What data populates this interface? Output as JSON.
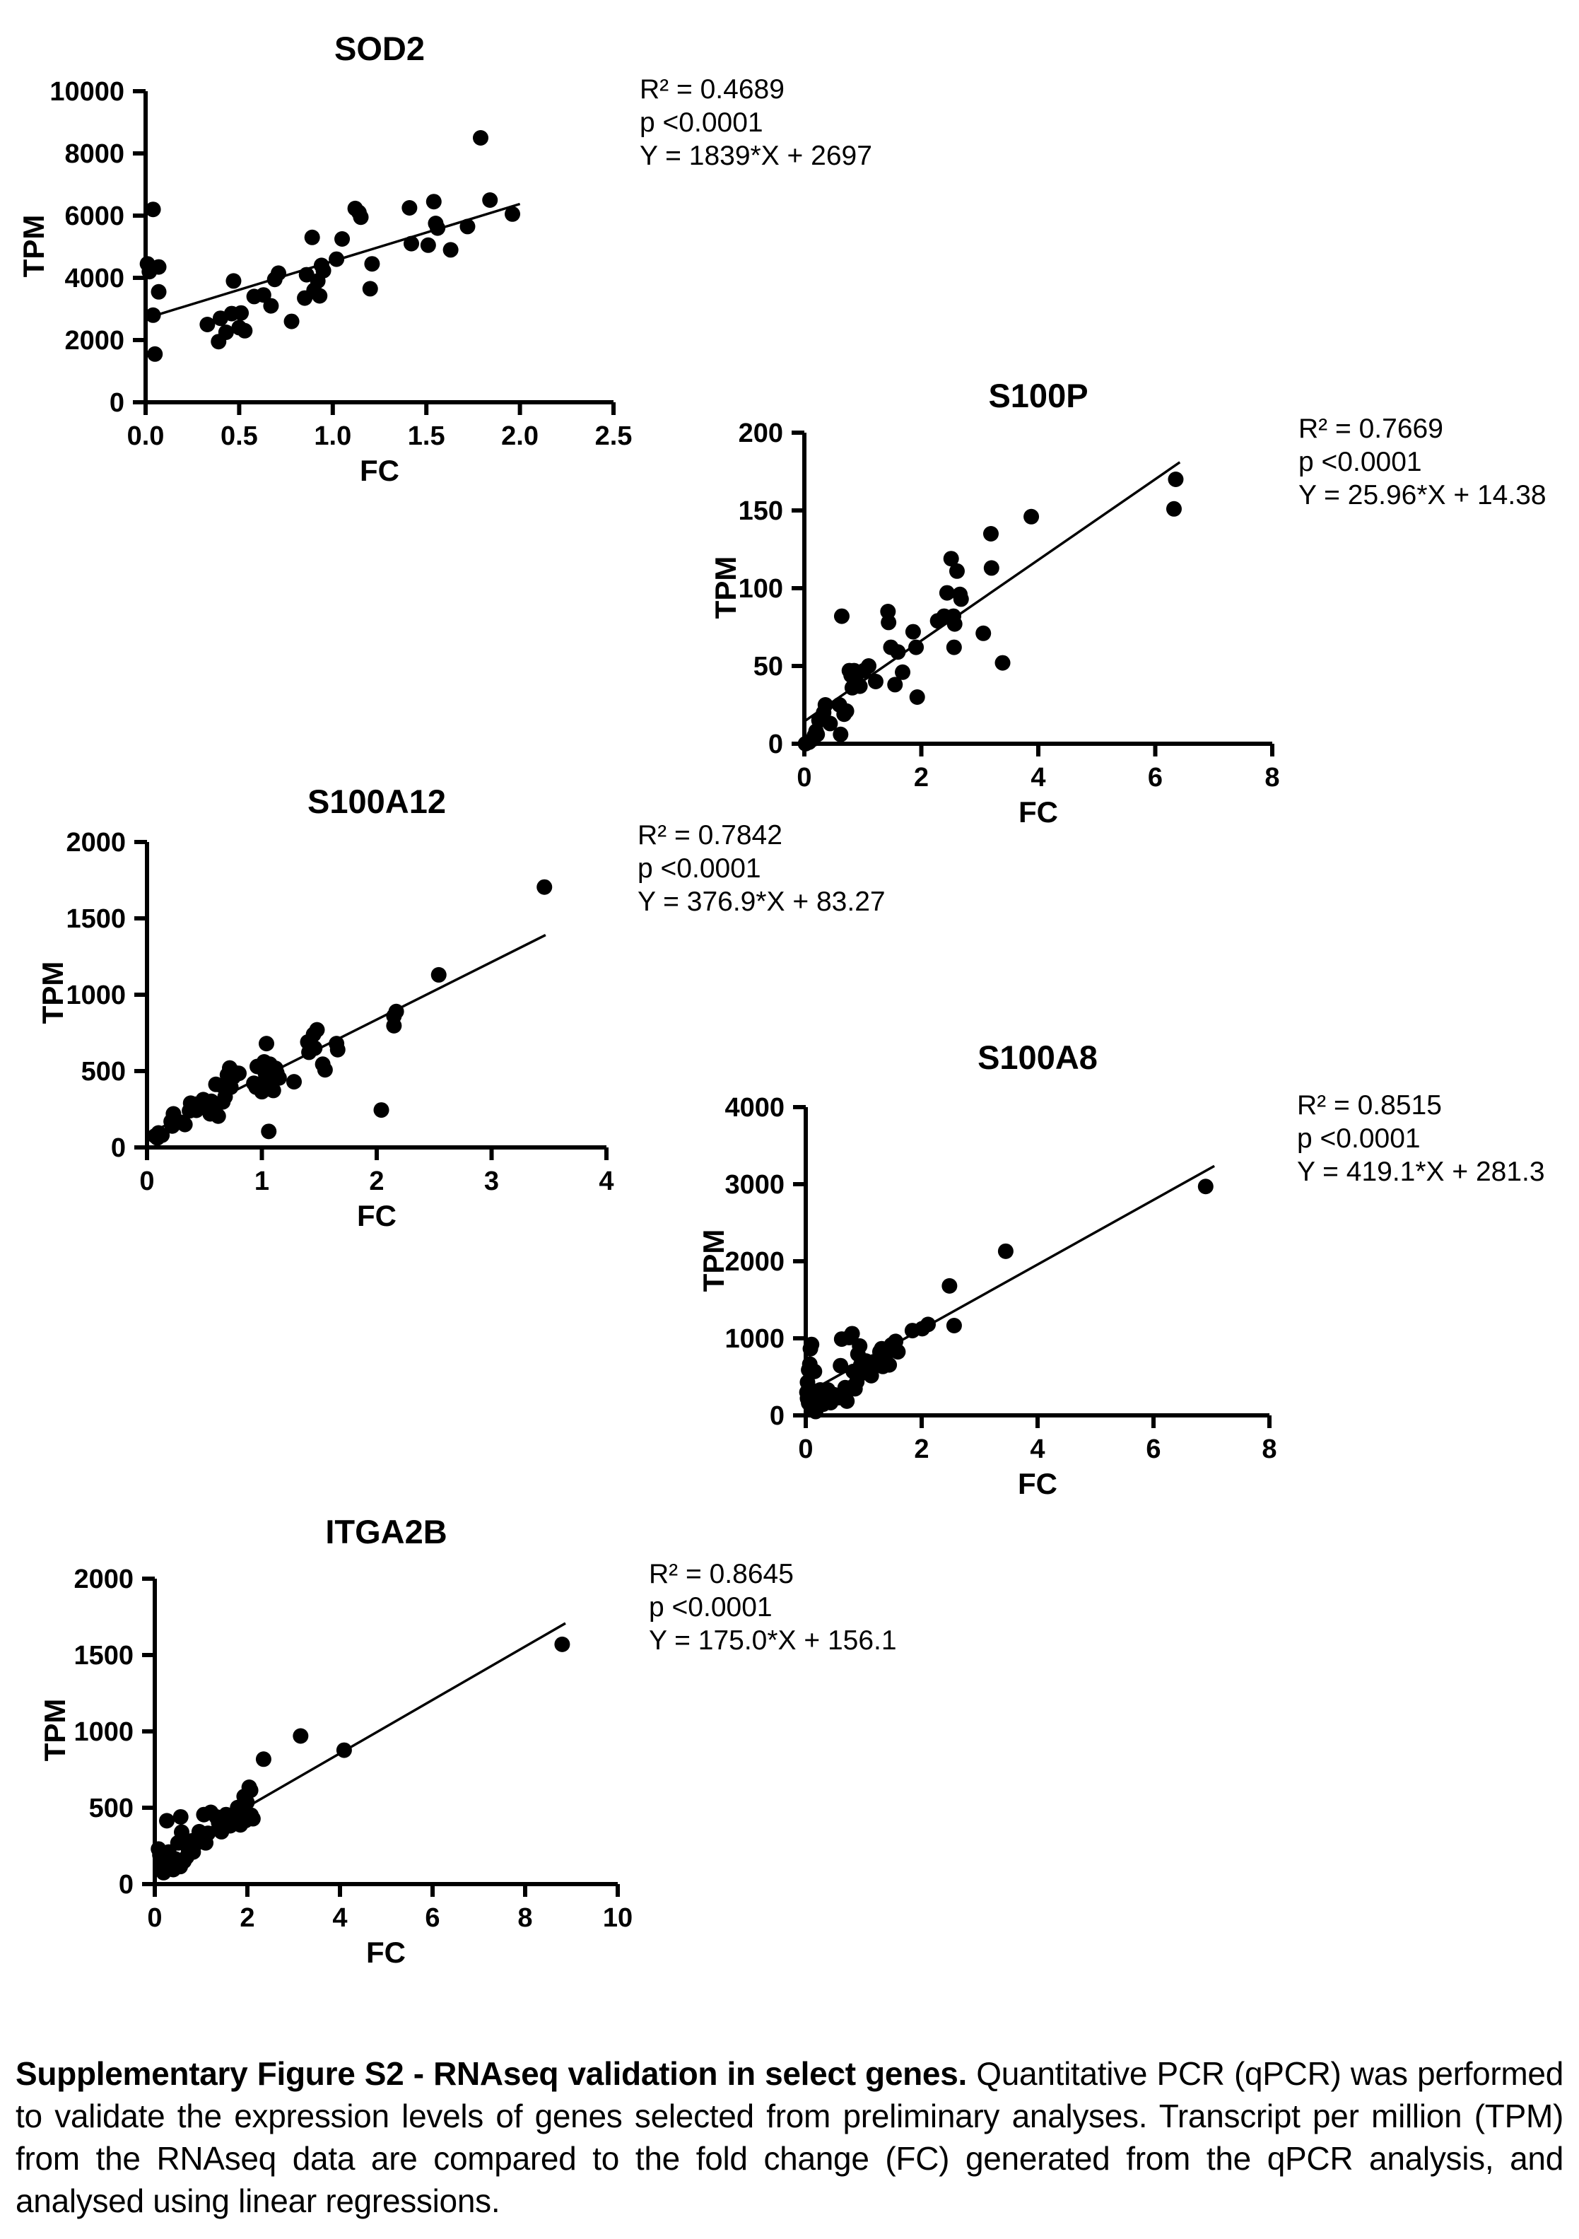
{
  "colors": {
    "foreground": "#000000",
    "background": "#ffffff"
  },
  "figure": {
    "caption_bold": "Supplementary Figure S2 - RNAseq validation in select genes.",
    "caption_rest": " Quantitative PCR (qPCR) was performed to validate the expression levels of genes selected from preliminary analyses. Transcript per million (TPM) from the RNAseq data are compared to the fold change (FC) generated from the qPCR analysis, and analysed using linear regressions."
  },
  "chart_data": [
    {
      "type": "scatter",
      "title": "SOD2",
      "xlabel": "FC",
      "ylabel": "TPM",
      "xlim": [
        0,
        2.5
      ],
      "ylim": [
        0,
        10000
      ],
      "x_ticks": [
        0,
        0.5,
        1.0,
        1.5,
        2.0,
        2.5
      ],
      "x_tick_labels": [
        "0.0",
        "0.5",
        "1.0",
        "1.5",
        "2.0",
        "2.5"
      ],
      "y_ticks": [
        0,
        2000,
        4000,
        6000,
        8000,
        10000
      ],
      "y_tick_labels": [
        "0",
        "2000",
        "4000",
        "6000",
        "8000",
        "10000"
      ],
      "stats": {
        "r2": "R² = 0.4689",
        "p": "p <0.0001",
        "equation": "Y = 1839*X + 2697"
      },
      "regression": {
        "x1": 0.05,
        "y1": 2789,
        "x2": 2.0,
        "y2": 6375
      },
      "points": [
        [
          0.04,
          6200
        ],
        [
          0.01,
          4450
        ],
        [
          0.02,
          4200
        ],
        [
          0.07,
          4350
        ],
        [
          0.07,
          3550
        ],
        [
          0.04,
          2800
        ],
        [
          0.05,
          1550
        ],
        [
          0.33,
          2500
        ],
        [
          0.39,
          1950
        ],
        [
          0.4,
          2700
        ],
        [
          0.43,
          2250
        ],
        [
          0.46,
          2850
        ],
        [
          0.47,
          3900
        ],
        [
          0.5,
          2400
        ],
        [
          0.51,
          2870
        ],
        [
          0.53,
          2300
        ],
        [
          0.58,
          3400
        ],
        [
          0.63,
          3450
        ],
        [
          0.67,
          3100
        ],
        [
          0.69,
          3950
        ],
        [
          0.71,
          4150
        ],
        [
          0.78,
          2600
        ],
        [
          0.85,
          3350
        ],
        [
          0.86,
          4100
        ],
        [
          0.89,
          5300
        ],
        [
          0.9,
          3600
        ],
        [
          0.92,
          3900
        ],
        [
          0.93,
          3420
        ],
        [
          0.94,
          4400
        ],
        [
          0.95,
          4230
        ],
        [
          1.02,
          4600
        ],
        [
          1.05,
          5250
        ],
        [
          1.12,
          6230
        ],
        [
          1.14,
          6100
        ],
        [
          1.15,
          5950
        ],
        [
          1.2,
          3650
        ],
        [
          1.21,
          4450
        ],
        [
          1.41,
          6250
        ],
        [
          1.42,
          5100
        ],
        [
          1.51,
          5050
        ],
        [
          1.54,
          6450
        ],
        [
          1.55,
          5750
        ],
        [
          1.56,
          5600
        ],
        [
          1.63,
          4900
        ],
        [
          1.72,
          5650
        ],
        [
          1.79,
          8500
        ],
        [
          1.84,
          6500
        ],
        [
          1.96,
          6050
        ]
      ]
    },
    {
      "type": "scatter",
      "title": "S100P",
      "xlabel": "FC",
      "ylabel": "TPM",
      "xlim": [
        0,
        8
      ],
      "ylim": [
        0,
        200
      ],
      "x_ticks": [
        0,
        2,
        4,
        6,
        8
      ],
      "x_tick_labels": [
        "0",
        "2",
        "4",
        "6",
        "8"
      ],
      "y_ticks": [
        0,
        50,
        100,
        150,
        200
      ],
      "y_tick_labels": [
        "0",
        "50",
        "100",
        "150",
        "200"
      ],
      "stats": {
        "r2": "R² = 0.7669",
        "p": "p <0.0001",
        "equation": "Y = 25.96*X + 14.38"
      },
      "regression": {
        "x1": 0.02,
        "y1": 14.9,
        "x2": 6.42,
        "y2": 181
      },
      "points": [
        [
          0.02,
          0
        ],
        [
          0.08,
          1
        ],
        [
          0.15,
          3
        ],
        [
          0.17,
          5
        ],
        [
          0.2,
          8
        ],
        [
          0.22,
          6
        ],
        [
          0.25,
          15
        ],
        [
          0.33,
          20
        ],
        [
          0.36,
          25
        ],
        [
          0.44,
          13
        ],
        [
          0.6,
          25
        ],
        [
          0.62,
          6
        ],
        [
          0.64,
          82
        ],
        [
          0.68,
          19
        ],
        [
          0.72,
          21
        ],
        [
          0.77,
          47
        ],
        [
          0.8,
          44
        ],
        [
          0.82,
          36
        ],
        [
          0.85,
          47
        ],
        [
          0.9,
          39
        ],
        [
          0.95,
          37
        ],
        [
          1.02,
          47
        ],
        [
          1.1,
          50
        ],
        [
          1.22,
          40
        ],
        [
          1.43,
          85
        ],
        [
          1.44,
          78
        ],
        [
          1.48,
          62
        ],
        [
          1.55,
          38
        ],
        [
          1.6,
          59
        ],
        [
          1.68,
          46
        ],
        [
          1.86,
          72
        ],
        [
          1.91,
          62
        ],
        [
          1.93,
          30
        ],
        [
          2.28,
          79
        ],
        [
          2.39,
          82
        ],
        [
          2.44,
          97
        ],
        [
          2.51,
          119
        ],
        [
          2.55,
          82
        ],
        [
          2.56,
          62
        ],
        [
          2.57,
          77
        ],
        [
          2.61,
          111
        ],
        [
          2.66,
          96
        ],
        [
          2.68,
          93
        ],
        [
          3.06,
          71
        ],
        [
          3.19,
          135
        ],
        [
          3.2,
          113
        ],
        [
          3.39,
          52
        ],
        [
          3.88,
          146
        ],
        [
          6.32,
          151
        ],
        [
          6.35,
          170
        ]
      ]
    },
    {
      "type": "scatter",
      "title": "S100A12",
      "xlabel": "FC",
      "ylabel": "TPM",
      "xlim": [
        0,
        4
      ],
      "ylim": [
        0,
        2000
      ],
      "x_ticks": [
        0,
        1,
        2,
        3,
        4
      ],
      "x_tick_labels": [
        "0",
        "1",
        "2",
        "3",
        "4"
      ],
      "y_ticks": [
        0,
        500,
        1000,
        1500,
        2000
      ],
      "y_tick_labels": [
        "0",
        "500",
        "1000",
        "1500",
        "2000"
      ],
      "stats": {
        "r2": "R² = 0.7842",
        "p": "p <0.0001",
        "equation": "Y = 376.9*X + 83.27"
      },
      "regression": {
        "x1": 0.07,
        "y1": 110,
        "x2": 3.47,
        "y2": 1391
      },
      "points": [
        [
          0.07,
          75
        ],
        [
          0.09,
          62
        ],
        [
          0.1,
          95
        ],
        [
          0.13,
          80
        ],
        [
          0.21,
          170
        ],
        [
          0.22,
          140
        ],
        [
          0.23,
          220
        ],
        [
          0.29,
          165
        ],
        [
          0.33,
          150
        ],
        [
          0.37,
          240
        ],
        [
          0.38,
          290
        ],
        [
          0.4,
          265
        ],
        [
          0.42,
          283
        ],
        [
          0.43,
          243
        ],
        [
          0.47,
          265
        ],
        [
          0.49,
          313
        ],
        [
          0.51,
          265
        ],
        [
          0.53,
          283
        ],
        [
          0.55,
          220
        ],
        [
          0.56,
          302
        ],
        [
          0.58,
          265
        ],
        [
          0.6,
          413
        ],
        [
          0.62,
          205
        ],
        [
          0.65,
          405
        ],
        [
          0.66,
          298
        ],
        [
          0.68,
          332
        ],
        [
          0.7,
          475
        ],
        [
          0.72,
          520
        ],
        [
          0.73,
          395
        ],
        [
          0.75,
          460
        ],
        [
          0.77,
          488
        ],
        [
          0.8,
          485
        ],
        [
          0.93,
          420
        ],
        [
          0.95,
          395
        ],
        [
          0.96,
          530
        ],
        [
          0.98,
          415
        ],
        [
          1.0,
          365
        ],
        [
          1.02,
          560
        ],
        [
          1.03,
          488
        ],
        [
          1.04,
          680
        ],
        [
          1.05,
          383
        ],
        [
          1.06,
          105
        ],
        [
          1.07,
          545
        ],
        [
          1.08,
          410
        ],
        [
          1.1,
          373
        ],
        [
          1.12,
          518
        ],
        [
          1.13,
          488
        ],
        [
          1.15,
          455
        ],
        [
          1.28,
          430
        ],
        [
          1.4,
          690
        ],
        [
          1.41,
          623
        ],
        [
          1.45,
          740
        ],
        [
          1.46,
          650
        ],
        [
          1.48,
          770
        ],
        [
          1.53,
          545
        ],
        [
          1.55,
          508
        ],
        [
          1.65,
          680
        ],
        [
          1.66,
          640
        ],
        [
          2.04,
          245
        ],
        [
          2.15,
          860
        ],
        [
          2.15,
          797
        ],
        [
          2.17,
          890
        ],
        [
          2.54,
          1130
        ],
        [
          3.46,
          1705
        ]
      ]
    },
    {
      "type": "scatter",
      "title": "S100A8",
      "xlabel": "FC",
      "ylabel": "TPM",
      "xlim": [
        0,
        8
      ],
      "ylim": [
        0,
        4000
      ],
      "x_ticks": [
        0,
        2,
        4,
        6,
        8
      ],
      "x_tick_labels": [
        "0",
        "2",
        "4",
        "6",
        "8"
      ],
      "y_ticks": [
        0,
        1000,
        2000,
        3000,
        4000
      ],
      "y_tick_labels": [
        "0",
        "1000",
        "2000",
        "3000",
        "4000"
      ],
      "stats": {
        "r2": "R² = 0.8515",
        "p": "p <0.0001",
        "equation": "Y = 419.1*X + 281.3"
      },
      "regression": {
        "x1": 0.2,
        "y1": 365,
        "x2": 7.05,
        "y2": 3236
      },
      "points": [
        [
          0.02,
          300
        ],
        [
          0.03,
          430
        ],
        [
          0.03,
          220
        ],
        [
          0.05,
          160
        ],
        [
          0.05,
          590
        ],
        [
          0.07,
          665
        ],
        [
          0.07,
          340
        ],
        [
          0.08,
          865
        ],
        [
          0.1,
          920
        ],
        [
          0.1,
          200
        ],
        [
          0.11,
          90
        ],
        [
          0.13,
          240
        ],
        [
          0.15,
          570
        ],
        [
          0.17,
          50
        ],
        [
          0.18,
          145
        ],
        [
          0.23,
          270
        ],
        [
          0.25,
          330
        ],
        [
          0.3,
          145
        ],
        [
          0.33,
          220
        ],
        [
          0.38,
          330
        ],
        [
          0.43,
          165
        ],
        [
          0.48,
          270
        ],
        [
          0.57,
          230
        ],
        [
          0.6,
          645
        ],
        [
          0.62,
          990
        ],
        [
          0.66,
          280
        ],
        [
          0.68,
          360
        ],
        [
          0.71,
          185
        ],
        [
          0.75,
          1010
        ],
        [
          0.78,
          360
        ],
        [
          0.8,
          1060
        ],
        [
          0.82,
          570
        ],
        [
          0.85,
          345
        ],
        [
          0.88,
          435
        ],
        [
          0.9,
          795
        ],
        [
          0.91,
          535
        ],
        [
          0.93,
          900
        ],
        [
          0.95,
          655
        ],
        [
          0.96,
          545
        ],
        [
          1.02,
          635
        ],
        [
          1.04,
          705
        ],
        [
          1.08,
          575
        ],
        [
          1.11,
          660
        ],
        [
          1.13,
          515
        ],
        [
          1.17,
          695
        ],
        [
          1.28,
          825
        ],
        [
          1.31,
          865
        ],
        [
          1.33,
          635
        ],
        [
          1.37,
          745
        ],
        [
          1.41,
          865
        ],
        [
          1.44,
          655
        ],
        [
          1.48,
          915
        ],
        [
          1.55,
          960
        ],
        [
          1.59,
          825
        ],
        [
          1.84,
          1100
        ],
        [
          2.01,
          1125
        ],
        [
          2.11,
          1180
        ],
        [
          2.48,
          1680
        ],
        [
          2.56,
          1165
        ],
        [
          3.45,
          2130
        ],
        [
          6.9,
          2970
        ]
      ]
    },
    {
      "type": "scatter",
      "title": "ITGA2B",
      "xlabel": "FC",
      "ylabel": "TPM",
      "xlim": [
        0,
        10
      ],
      "ylim": [
        0,
        2000
      ],
      "x_ticks": [
        0,
        2,
        4,
        6,
        8,
        10
      ],
      "x_tick_labels": [
        "0",
        "2",
        "4",
        "6",
        "8",
        "10"
      ],
      "y_ticks": [
        0,
        500,
        1000,
        1500,
        2000
      ],
      "y_tick_labels": [
        "0",
        "500",
        "1000",
        "1500",
        "2000"
      ],
      "stats": {
        "r2": "R² = 0.8645",
        "p": "p <0.0001",
        "equation": "Y = 175.0*X + 156.1"
      },
      "regression": {
        "x1": 0.1,
        "y1": 174,
        "x2": 8.87,
        "y2": 1708
      },
      "points": [
        [
          0.08,
          230
        ],
        [
          0.11,
          190
        ],
        [
          0.13,
          125
        ],
        [
          0.15,
          105
        ],
        [
          0.19,
          75
        ],
        [
          0.25,
          150
        ],
        [
          0.26,
          415
        ],
        [
          0.3,
          210
        ],
        [
          0.4,
          95
        ],
        [
          0.44,
          165
        ],
        [
          0.46,
          135
        ],
        [
          0.5,
          270
        ],
        [
          0.55,
          115
        ],
        [
          0.56,
          440
        ],
        [
          0.58,
          340
        ],
        [
          0.61,
          270
        ],
        [
          0.63,
          150
        ],
        [
          0.69,
          178
        ],
        [
          0.73,
          224
        ],
        [
          0.8,
          283
        ],
        [
          0.83,
          210
        ],
        [
          0.88,
          289
        ],
        [
          0.91,
          270
        ],
        [
          0.96,
          343
        ],
        [
          1.02,
          289
        ],
        [
          1.06,
          455
        ],
        [
          1.1,
          270
        ],
        [
          1.15,
          333
        ],
        [
          1.21,
          470
        ],
        [
          1.33,
          440
        ],
        [
          1.38,
          402
        ],
        [
          1.44,
          343
        ],
        [
          1.48,
          432
        ],
        [
          1.54,
          455
        ],
        [
          1.63,
          382
        ],
        [
          1.69,
          408
        ],
        [
          1.79,
          501
        ],
        [
          1.83,
          428
        ],
        [
          1.85,
          388
        ],
        [
          1.89,
          455
        ],
        [
          1.93,
          574
        ],
        [
          1.96,
          416
        ],
        [
          1.99,
          535
        ],
        [
          2.04,
          634
        ],
        [
          2.07,
          614
        ],
        [
          2.08,
          451
        ],
        [
          2.12,
          428
        ],
        [
          2.35,
          818
        ],
        [
          3.15,
          970
        ],
        [
          4.09,
          877
        ],
        [
          8.8,
          1570
        ]
      ]
    }
  ]
}
